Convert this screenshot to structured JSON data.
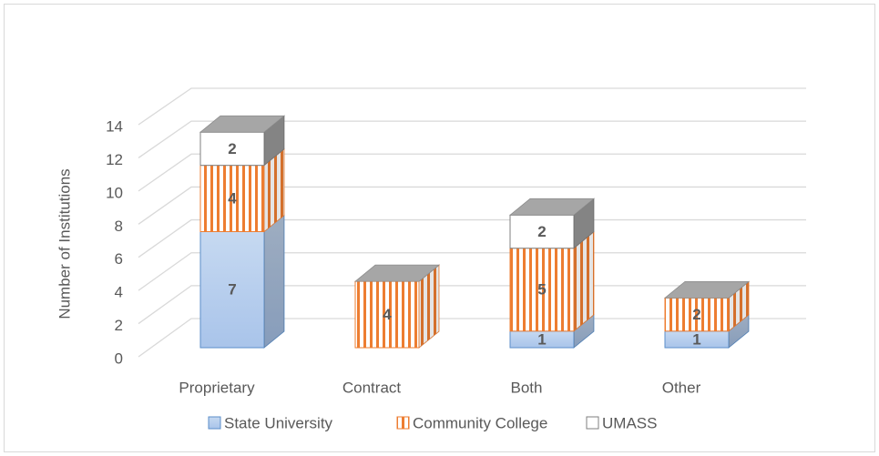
{
  "chart_data": {
    "type": "bar3d_stacked",
    "y_axis_label": "Number of Institutions",
    "categories": [
      "Proprietary",
      "Contract",
      "Both",
      "Other"
    ],
    "series": [
      {
        "name": "State University",
        "color": "#a9c4ea",
        "stroke": "#5b8ec9",
        "values": [
          7,
          0,
          1,
          1
        ]
      },
      {
        "name": "Community College",
        "color": "#f4b183",
        "stroke": "#ed7d31",
        "hatch": true,
        "values": [
          4,
          4,
          5,
          2
        ]
      },
      {
        "name": "UMASS",
        "color": "#ffffff",
        "stroke": "#7f7f7f",
        "values": [
          2,
          0,
          2,
          0
        ]
      }
    ],
    "ylim": [
      0,
      14
    ],
    "yticks": [
      0,
      2,
      4,
      6,
      8,
      10,
      12,
      14
    ],
    "grid": true,
    "legend": "bottom"
  }
}
